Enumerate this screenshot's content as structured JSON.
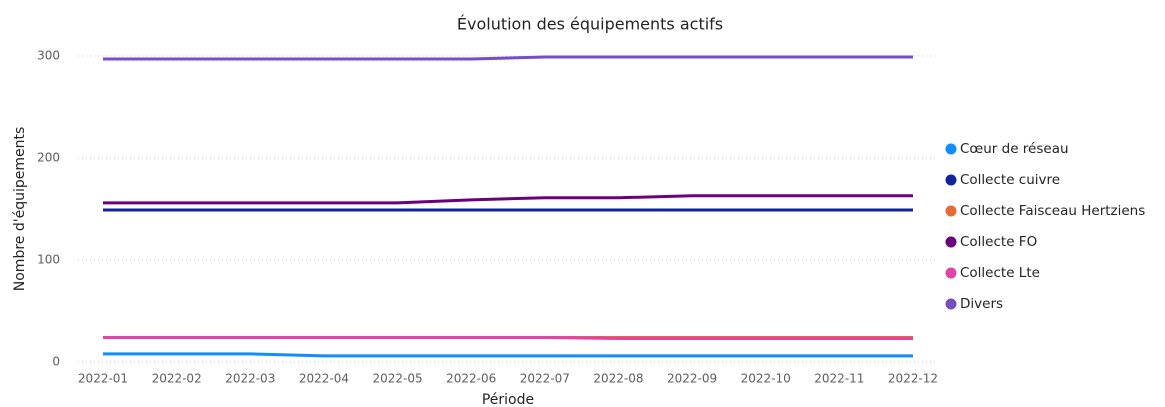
{
  "chart_data": {
    "type": "line",
    "title": "Évolution des équipements actifs",
    "xlabel": "Période",
    "ylabel": "Nombre d'équipements",
    "categories": [
      "2022-01",
      "2022-02",
      "2022-03",
      "2022-04",
      "2022-05",
      "2022-06",
      "2022-07",
      "2022-08",
      "2022-09",
      "2022-10",
      "2022-11",
      "2022-12"
    ],
    "ylim": [
      0,
      300
    ],
    "yticks": [
      0,
      100,
      200,
      300
    ],
    "grid": true,
    "legend": "right",
    "series": [
      {
        "name": "Cœur de réseau",
        "color": "#118DFF",
        "values": [
          8,
          8,
          8,
          6,
          6,
          6,
          6,
          6,
          6,
          6,
          6,
          6
        ]
      },
      {
        "name": "Collecte cuivre",
        "color": "#12239E",
        "values": [
          149,
          149,
          149,
          149,
          149,
          149,
          149,
          149,
          149,
          149,
          149,
          149
        ]
      },
      {
        "name": "Collecte Faisceau Hertziens",
        "color": "#E66C37",
        "values": [
          24,
          24,
          24,
          24,
          24,
          24,
          24,
          24,
          24,
          24,
          24,
          24
        ]
      },
      {
        "name": "Collecte FO",
        "color": "#6B007B",
        "values": [
          156,
          156,
          156,
          156,
          156,
          159,
          161,
          161,
          163,
          163,
          163,
          163
        ]
      },
      {
        "name": "Collecte Lte",
        "color": "#E044A7",
        "values": [
          24,
          24,
          24,
          24,
          24,
          24,
          24,
          23,
          23,
          23,
          23,
          23
        ]
      },
      {
        "name": "Divers",
        "color": "#744EC2",
        "values": [
          297,
          297,
          297,
          297,
          297,
          297,
          299,
          299,
          299,
          299,
          299,
          299
        ]
      }
    ]
  }
}
